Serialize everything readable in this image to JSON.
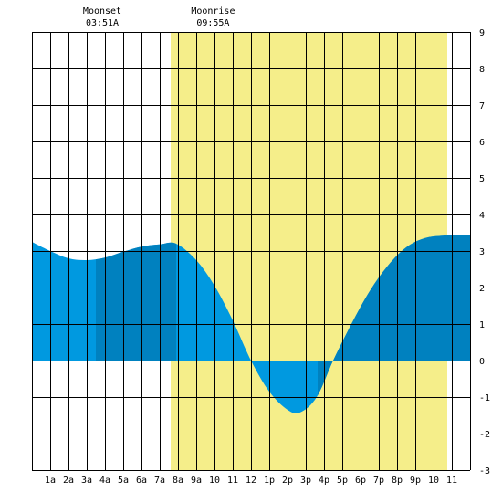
{
  "chart_data": {
    "type": "area",
    "title": "",
    "xlabel": "",
    "ylabel": "",
    "x_range_hours": [
      0,
      24
    ],
    "ylim": [
      -3,
      9
    ],
    "y_ticks": [
      -3,
      -2,
      -1,
      0,
      1,
      2,
      3,
      4,
      5,
      6,
      7,
      8,
      9
    ],
    "x_tick_labels": [
      "1a",
      "2a",
      "3a",
      "4a",
      "5a",
      "6a",
      "7a",
      "8a",
      "9a",
      "10",
      "11",
      "12",
      "1p",
      "2p",
      "3p",
      "4p",
      "5p",
      "6p",
      "7p",
      "8p",
      "9p",
      "10",
      "11"
    ],
    "grid": true,
    "daylight": {
      "start_hour": 7.6,
      "end_hour": 22.75
    },
    "moon_events": [
      {
        "name": "Moonset",
        "time": "03:51A",
        "hour": 3.85
      },
      {
        "name": "Moonrise",
        "time": "09:55A",
        "hour": 9.92
      }
    ],
    "tide_curve": {
      "hours": [
        0,
        1,
        2,
        3,
        4,
        5,
        6,
        7,
        7.9,
        9,
        10,
        11,
        12,
        13,
        14,
        14.7,
        15.6,
        16.5,
        17.5,
        18.5,
        19.5,
        20.5,
        21.5,
        22.5,
        23.3,
        24
      ],
      "heights": [
        3.25,
        3.0,
        2.8,
        2.75,
        2.82,
        2.98,
        3.12,
        3.18,
        3.2,
        2.75,
        2.05,
        1.1,
        0.0,
        -0.85,
        -1.35,
        -1.42,
        -1.0,
        0.0,
        1.0,
        1.9,
        2.6,
        3.1,
        3.35,
        3.42,
        3.43,
        3.43
      ]
    },
    "shade_bands": [
      {
        "start_hour": 3.5,
        "end_hour": 7.9
      },
      {
        "start_hour": 15.65,
        "end_hour": 24
      }
    ],
    "colors": {
      "tide_light": "#0099e0",
      "tide_dark": "#0081bf",
      "daylight": "#f5ee8a",
      "grid": "#000000",
      "background": "#ffffff"
    }
  }
}
